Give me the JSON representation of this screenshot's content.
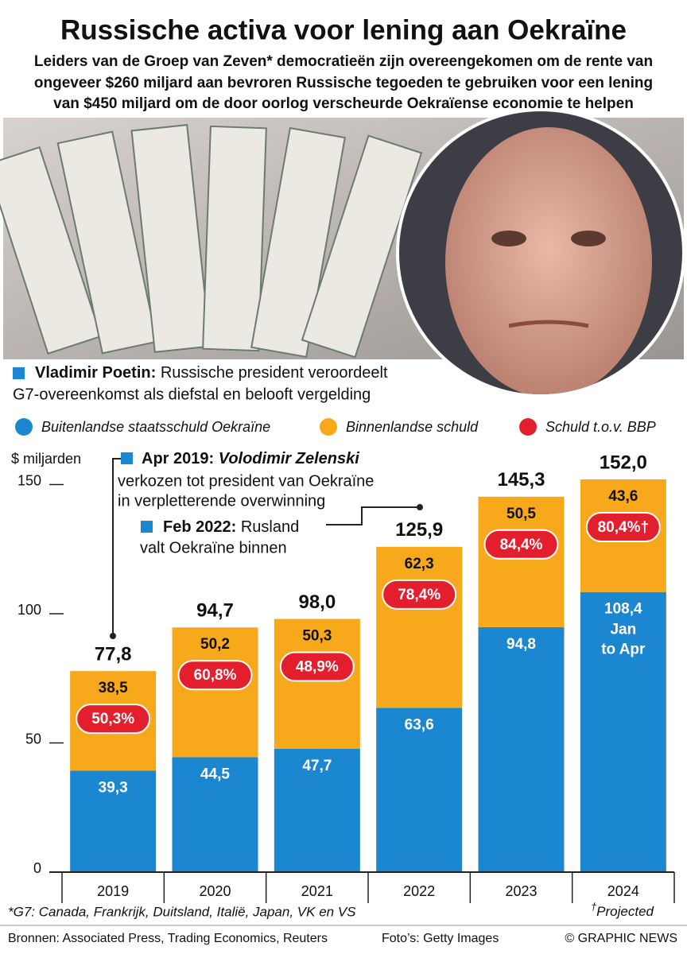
{
  "chart_data": {
    "type": "bar",
    "title": "Russische activa voor lening aan Oekraïne",
    "subtitle": [
      "Leiders van de Groep van Zeven* democratieën zijn overeengekomen om de rente van",
      "ongeveer $260 miljard aan bevroren Russische tegoeden te gebruiken voor een lening",
      "van $450 miljard om de door oorlog verscheurde Oekraïense economie te helpen"
    ],
    "photo_caption": {
      "name": "Vladimir Poetin:",
      "text": [
        "Russische president veroordeelt",
        "G7-overeenkomst als diefstal en belooft vergelding"
      ]
    },
    "y_label": "$ miljarden",
    "categories": [
      "2019",
      "2020",
      "2021",
      "2022",
      "2023",
      "2024"
    ],
    "series": [
      {
        "name": "Buitenlandse staatsschuld Oekraïne",
        "color": "#1a87d0",
        "values": [
          39.3,
          44.5,
          47.7,
          63.6,
          94.8,
          108.4
        ],
        "value_labels": [
          "39,3",
          "44,5",
          "47,7",
          "63,6",
          "94,8",
          "108,4"
        ]
      },
      {
        "name": "Binnenlandse schuld",
        "color": "#f7a81b",
        "values": [
          38.5,
          50.2,
          50.3,
          62.3,
          50.5,
          43.6
        ],
        "value_labels": [
          "38,5",
          "50,2",
          "50,3",
          "62,3",
          "50,5",
          "43,6"
        ]
      },
      {
        "name": "Schuld t.o.v. BBP",
        "color": "#e31e2d",
        "kind": "badge",
        "values": [
          50.3,
          60.8,
          48.9,
          78.4,
          84.4,
          80.4
        ],
        "value_labels": [
          "50,3%",
          "60,8%",
          "48,9%",
          "78,4%",
          "84,4%",
          "80,4%†"
        ]
      }
    ],
    "totals": {
      "values": [
        77.8,
        94.7,
        98.0,
        125.9,
        145.3,
        152.0
      ],
      "value_labels": [
        "77,8",
        "94,7",
        "98,0",
        "125,9",
        "145,3",
        "152,0"
      ]
    },
    "notes": [
      null,
      null,
      null,
      null,
      null,
      [
        "Jan",
        "to Apr"
      ]
    ],
    "ylim": [
      0,
      160
    ],
    "yticks": [
      0,
      50,
      100,
      150
    ],
    "annotations": [
      {
        "date": "Apr 2019:",
        "title": "Volodimir Zelenski",
        "text": [
          "verkozen tot president van Oekraïne",
          "in verpletterende overwinning"
        ]
      },
      {
        "date": "Feb 2022:",
        "text": [
          "Rusland",
          "valt Oekraïne binnen"
        ]
      }
    ],
    "footnote": "*G7: Canada, Frankrijk, Duitsland, Italië, Japan, VK en VS",
    "projected_note": {
      "mark": "†",
      "text": "Projected"
    },
    "sources": "Bronnen: Associated Press, Trading Economics, Reuters",
    "photo_credit": "Foto’s: Getty Images",
    "credit": "© GRAPHIC NEWS"
  }
}
